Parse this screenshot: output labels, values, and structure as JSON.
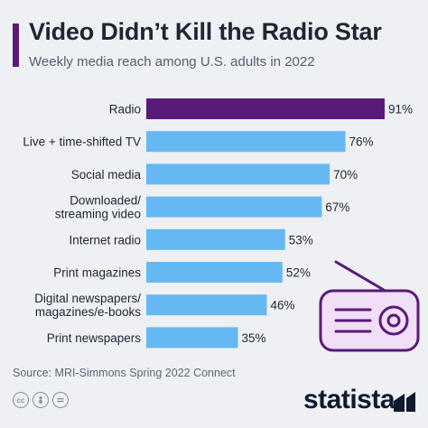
{
  "header": {
    "title": "Video Didn’t Kill the Radio Star",
    "subtitle": "Weekly media reach among U.S. adults in 2022"
  },
  "chart_data": {
    "type": "bar",
    "orientation": "horizontal",
    "title": "Video Didn’t Kill the Radio Star",
    "subtitle": "Weekly media reach among U.S. adults in 2022",
    "categories": [
      [
        "Radio"
      ],
      [
        "Live + time-shifted TV"
      ],
      [
        "Social media"
      ],
      [
        "Downloaded/",
        "streaming video"
      ],
      [
        "Internet radio"
      ],
      [
        "Print magazines"
      ],
      [
        "Digital newspapers/",
        "magazines/e-books"
      ],
      [
        "Print newspapers"
      ]
    ],
    "values": [
      91,
      76,
      70,
      67,
      53,
      52,
      46,
      35
    ],
    "value_labels": [
      "91%",
      "76%",
      "70%",
      "67%",
      "53%",
      "52%",
      "46%",
      "35%"
    ],
    "xlim": [
      0,
      100
    ],
    "grid": false,
    "colors": {
      "highlight": "#5a1a7a",
      "default": "#66b8f2"
    }
  },
  "footer": {
    "source": "Source: MRI-Simmons Spring 2022 Connect",
    "logo": "statista",
    "license_icons": [
      "cc-icon",
      "person-icon",
      "equals-icon"
    ]
  },
  "illustration": {
    "icon": "radio-icon",
    "color": "#5a1a7a",
    "fill": "#f1dff7"
  }
}
